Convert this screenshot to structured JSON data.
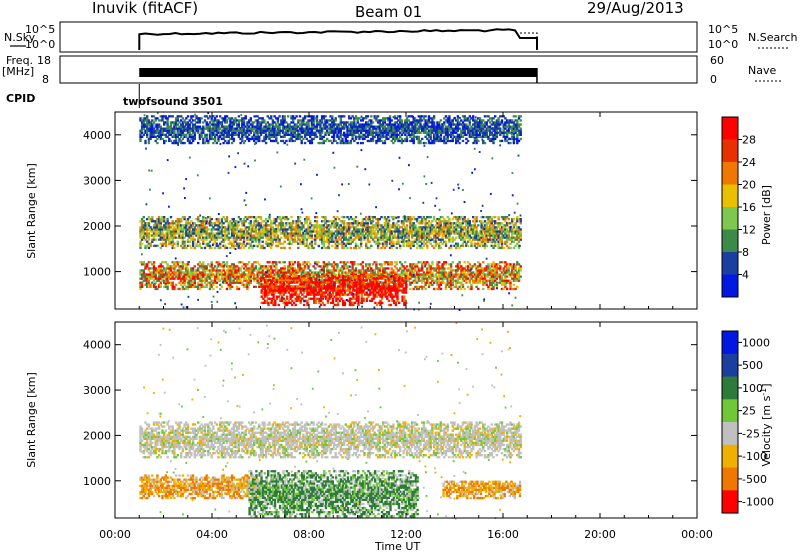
{
  "header": {
    "station": "Inuvik (fitACF)",
    "beam": "Beam 01",
    "date": "29/Aug/2013"
  },
  "top_panels": {
    "nsky_label": "N.Sky",
    "nsearch_label": "N.Search",
    "noise_ticks": [
      "10^5",
      "10^0"
    ],
    "freq_label": "Freq.",
    "freq_unit": "[MHz]",
    "freq_ticks": [
      "18",
      "8"
    ],
    "nave_label": "Nave",
    "nave_ticks": [
      "60",
      "0"
    ],
    "cpid_label": "CPID",
    "cpid_value": "twofsound 3501"
  },
  "colors": {
    "power_scale": [
      "#0018e0",
      "#1a3f9e",
      "#3c8a4a",
      "#7fc850",
      "#e8c000",
      "#f07800",
      "#e83000",
      "#ff0000"
    ],
    "velocity_scale": [
      "#0018e0",
      "#1a3f9e",
      "#2e7a3a",
      "#70c838",
      "#c0c0c0",
      "#f0b000",
      "#f07800",
      "#ff0000"
    ]
  },
  "chart_data": [
    {
      "type": "heatmap",
      "name": "power",
      "ylabel": "Slant Range [km]",
      "ylim": [
        180,
        4500
      ],
      "y_ticks": [
        "1000",
        "2000",
        "3000",
        "4000"
      ],
      "colorbar_label": "Power [dB]",
      "colorbar_ticks": [
        "4",
        "8",
        "12",
        "16",
        "20",
        "24",
        "28"
      ],
      "colorbar_range": [
        0,
        32
      ],
      "x_ticks": [
        "00:00",
        "04:00",
        "08:00",
        "12:00",
        "16:00",
        "20:00",
        "00:00"
      ],
      "xlim_hours": [
        0,
        24
      ],
      "data_time_range_hours": [
        1.0,
        16.7
      ],
      "bands": [
        {
          "t": [
            1.0,
            16.7
          ],
          "r": [
            1500,
            2200
          ],
          "level": "medium"
        },
        {
          "t": [
            1.0,
            16.7
          ],
          "r": [
            600,
            1200
          ],
          "level": "medium-high"
        },
        {
          "t": [
            6.0,
            12.0
          ],
          "r": [
            250,
            900
          ],
          "level": "high"
        },
        {
          "t": [
            1.0,
            16.7
          ],
          "r": [
            3800,
            4400
          ],
          "level": "low"
        }
      ]
    },
    {
      "type": "heatmap",
      "name": "velocity",
      "ylabel": "Slant Range [km]",
      "xlabel": "Time UT",
      "ylim": [
        180,
        4500
      ],
      "y_ticks": [
        "1000",
        "2000",
        "3000",
        "4000"
      ],
      "colorbar_label": "Velocity [m s^-1]",
      "colorbar_ticks": [
        "1000",
        "500",
        "100",
        "25",
        "-25",
        "-100",
        "-500",
        "-1000"
      ],
      "x_ticks": [
        "00:00",
        "04:00",
        "08:00",
        "12:00",
        "16:00",
        "20:00",
        "00:00"
      ],
      "xlim_hours": [
        0,
        24
      ],
      "data_time_range_hours": [
        1.0,
        16.7
      ],
      "bands": [
        {
          "t": [
            1.0,
            16.7
          ],
          "r": [
            1500,
            2300
          ],
          "level": "near-zero"
        },
        {
          "t": [
            1.0,
            6.0
          ],
          "r": [
            600,
            1100
          ],
          "level": "negative"
        },
        {
          "t": [
            5.5,
            12.5
          ],
          "r": [
            200,
            1200
          ],
          "level": "positive"
        },
        {
          "t": [
            13.5,
            16.7
          ],
          "r": [
            600,
            1000
          ],
          "level": "negative"
        }
      ]
    }
  ]
}
